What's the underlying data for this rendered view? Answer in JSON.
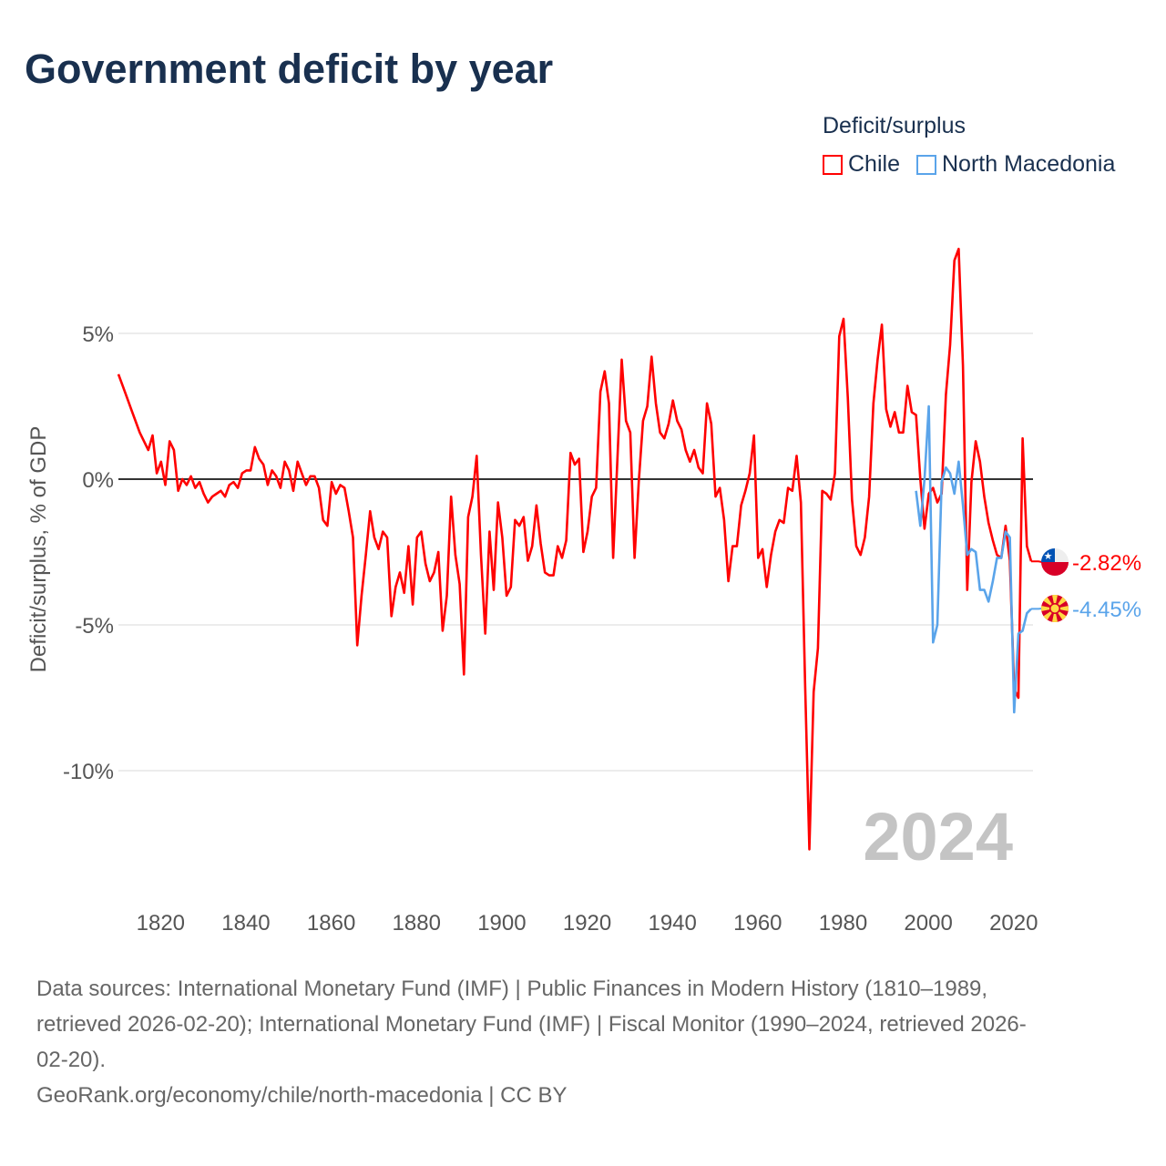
{
  "title": "Government deficit by year",
  "legend": {
    "title": "Deficit/surplus",
    "items": [
      {
        "label": "Chile",
        "color": "#ff0000"
      },
      {
        "label": "North Macedonia",
        "color": "#5aa4ea"
      }
    ]
  },
  "chart_data": {
    "type": "line",
    "title": "Government deficit by year",
    "xlabel": "",
    "ylabel": "Deficit/surplus, % of GDP",
    "xlim": [
      1810,
      2024
    ],
    "ylim": [
      -13,
      8.5
    ],
    "x_ticks": [
      1820,
      1840,
      1860,
      1880,
      1900,
      1920,
      1940,
      1960,
      1980,
      2000,
      2020
    ],
    "y_ticks": [
      {
        "value": 5,
        "label": "5%"
      },
      {
        "value": 0,
        "label": "0%"
      },
      {
        "value": -5,
        "label": "-5%"
      },
      {
        "value": -10,
        "label": "-10%"
      }
    ],
    "year_watermark": "2024",
    "series": [
      {
        "name": "Chile",
        "color": "#ff0000",
        "start_year": 1810,
        "end_label": "-2.82%",
        "flag": "chile-flag",
        "values": [
          3.6,
          3.2,
          2.8,
          2.4,
          2.0,
          1.6,
          1.3,
          1.0,
          1.5,
          0.2,
          0.6,
          -0.2,
          1.3,
          1.0,
          -0.4,
          0.0,
          -0.2,
          0.1,
          -0.3,
          -0.1,
          -0.5,
          -0.8,
          -0.6,
          -0.5,
          -0.4,
          -0.6,
          -0.2,
          -0.1,
          -0.3,
          0.2,
          0.3,
          0.3,
          1.1,
          0.7,
          0.5,
          -0.2,
          0.3,
          0.1,
          -0.3,
          0.6,
          0.3,
          -0.4,
          0.6,
          0.2,
          -0.2,
          0.1,
          0.1,
          -0.3,
          -1.4,
          -1.6,
          -0.1,
          -0.5,
          -0.2,
          -0.3,
          -1.1,
          -2.0,
          -5.7,
          -4.0,
          -2.6,
          -1.1,
          -2.0,
          -2.4,
          -1.8,
          -2.0,
          -4.7,
          -3.7,
          -3.2,
          -3.9,
          -2.3,
          -4.3,
          -2.0,
          -1.8,
          -2.9,
          -3.5,
          -3.2,
          -2.5,
          -5.2,
          -4.0,
          -0.6,
          -2.6,
          -3.6,
          -6.7,
          -1.3,
          -0.6,
          0.8,
          -2.6,
          -5.3,
          -1.8,
          -3.8,
          -0.8,
          -2.0,
          -4.0,
          -3.7,
          -1.4,
          -1.6,
          -1.3,
          -2.8,
          -2.3,
          -0.9,
          -2.2,
          -3.2,
          -3.3,
          -3.3,
          -2.3,
          -2.7,
          -2.1,
          0.9,
          0.5,
          0.7,
          -2.5,
          -1.8,
          -0.6,
          -0.3,
          3.0,
          3.7,
          2.6,
          -2.7,
          0.7,
          4.1,
          2.0,
          1.6,
          -2.7,
          -0.1,
          2.0,
          2.5,
          4.2,
          2.6,
          1.6,
          1.4,
          1.9,
          2.7,
          2.0,
          1.7,
          1.0,
          0.6,
          1.0,
          0.4,
          0.2,
          2.6,
          1.9,
          -0.6,
          -0.3,
          -1.4,
          -3.5,
          -2.3,
          -2.3,
          -0.9,
          -0.4,
          0.2,
          1.5,
          -2.7,
          -2.4,
          -3.7,
          -2.6,
          -1.8,
          -1.4,
          -1.5,
          -0.3,
          -0.4,
          0.8,
          -0.8,
          -7.0,
          -12.7,
          -7.3,
          -5.8,
          -0.4,
          -0.5,
          -0.7,
          0.2,
          4.9,
          5.5,
          2.8,
          -0.7,
          -2.3,
          -2.6,
          -2.0,
          -0.6,
          2.6,
          4.1,
          5.3,
          2.4,
          1.8,
          2.3,
          1.6,
          1.6,
          3.2,
          2.3,
          2.2,
          0.0,
          -1.7,
          -0.5,
          -0.3,
          -0.8,
          -0.5,
          2.9,
          4.6,
          7.5,
          7.9,
          3.9,
          -3.8,
          -0.1,
          1.3,
          0.6,
          -0.6,
          -1.5,
          -2.1,
          -2.6,
          -2.7,
          -1.6,
          -2.8,
          -7.2,
          -7.5,
          1.4,
          -2.3,
          -2.82
        ]
      },
      {
        "name": "North Macedonia",
        "color": "#5aa4ea",
        "start_year": 1997,
        "end_label": "-4.45%",
        "flag": "north-macedonia-flag",
        "values": [
          -0.4,
          -1.6,
          0.0,
          2.5,
          -5.6,
          -5.0,
          -0.1,
          0.4,
          0.2,
          -0.5,
          0.6,
          -0.9,
          -2.6,
          -2.4,
          -2.5,
          -3.8,
          -3.8,
          -4.2,
          -3.5,
          -2.7,
          -2.7,
          -1.8,
          -2.0,
          -8.0,
          -5.3,
          -5.2,
          -4.6,
          -4.45
        ]
      }
    ]
  },
  "footer": {
    "lines": [
      "Data sources: International Monetary Fund (IMF) | Public Finances in Modern History (1810–1989,",
      "retrieved 2026-02-20); International Monetary Fund (IMF) | Fiscal Monitor (1990–2024, retrieved 2026-",
      "02-20).",
      "GeoRank.org/economy/chile/north-macedonia | CC BY"
    ]
  }
}
